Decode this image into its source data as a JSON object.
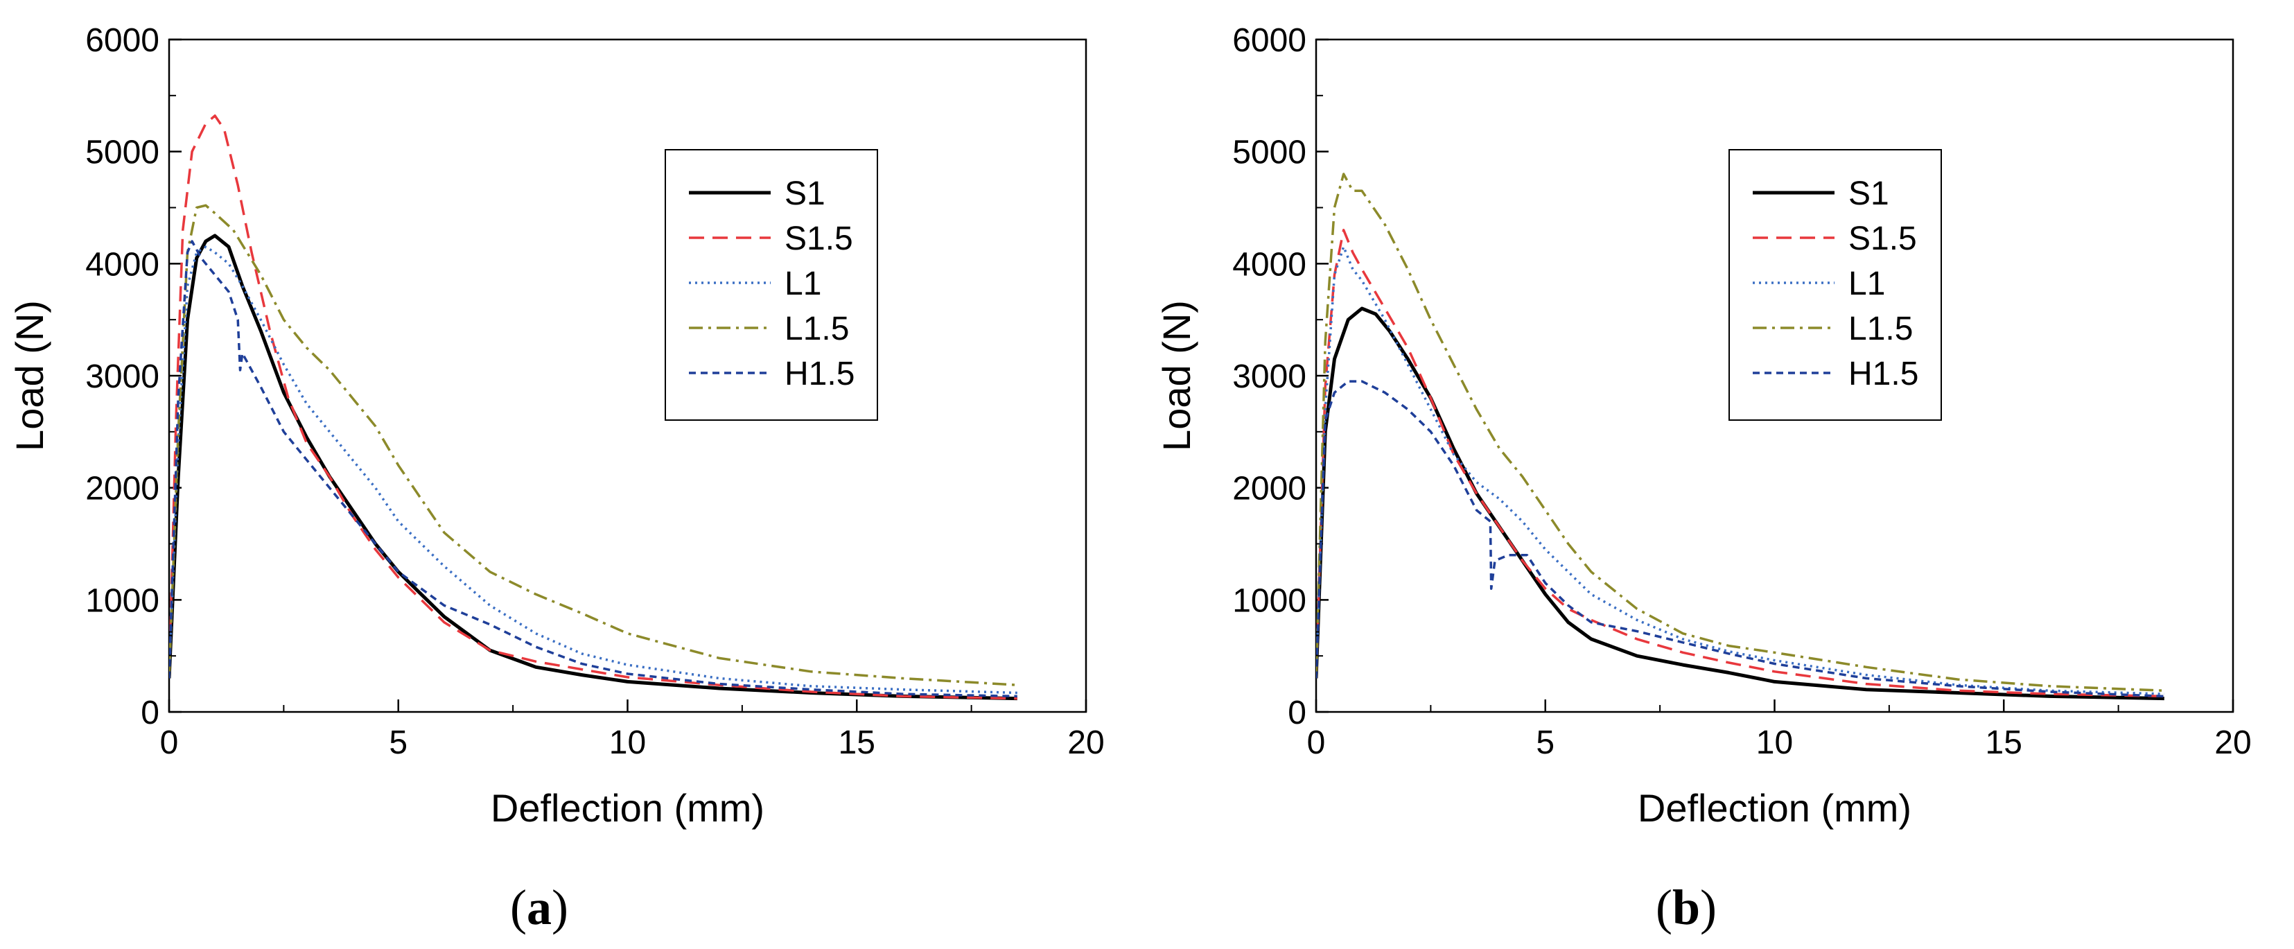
{
  "figure": {
    "panels": [
      {
        "id": "a",
        "label": "a"
      },
      {
        "id": "b",
        "label": "b"
      }
    ]
  },
  "chart_data": [
    {
      "type": "line",
      "panel": "a",
      "title": "",
      "xlabel": "Deflection (mm)",
      "ylabel": "Load (N)",
      "xlim": [
        0,
        20
      ],
      "ylim": [
        0,
        6000
      ],
      "xticks": [
        "0",
        "5",
        "10",
        "15",
        "20"
      ],
      "yticks": [
        "0",
        "1000",
        "2000",
        "3000",
        "4000",
        "5000",
        "6000"
      ],
      "legend_position": "top-right",
      "series": [
        {
          "name": "S1",
          "color": "#000000",
          "dash": "solid",
          "points": [
            [
              0,
              300
            ],
            [
              0.2,
              2100
            ],
            [
              0.4,
              3500
            ],
            [
              0.6,
              4050
            ],
            [
              0.8,
              4200
            ],
            [
              1.0,
              4250
            ],
            [
              1.3,
              4150
            ],
            [
              1.6,
              3800
            ],
            [
              2.0,
              3400
            ],
            [
              2.5,
              2850
            ],
            [
              3.0,
              2450
            ],
            [
              3.5,
              2100
            ],
            [
              4.0,
              1800
            ],
            [
              4.5,
              1500
            ],
            [
              5.0,
              1250
            ],
            [
              5.5,
              1050
            ],
            [
              6.0,
              850
            ],
            [
              7.0,
              550
            ],
            [
              8.0,
              400
            ],
            [
              9.0,
              330
            ],
            [
              10.0,
              270
            ],
            [
              12.0,
              210
            ],
            [
              14.0,
              170
            ],
            [
              16.0,
              140
            ],
            [
              18.5,
              120
            ]
          ]
        },
        {
          "name": "S1.5",
          "color": "#e8383d",
          "dash": "dashed",
          "points": [
            [
              0,
              300
            ],
            [
              0.15,
              2600
            ],
            [
              0.3,
              4300
            ],
            [
              0.5,
              5000
            ],
            [
              0.8,
              5250
            ],
            [
              1.0,
              5320
            ],
            [
              1.2,
              5200
            ],
            [
              1.5,
              4700
            ],
            [
              1.8,
              4100
            ],
            [
              2.2,
              3400
            ],
            [
              2.6,
              2800
            ],
            [
              3.0,
              2400
            ],
            [
              3.5,
              2100
            ],
            [
              4.0,
              1750
            ],
            [
              4.5,
              1450
            ],
            [
              5.0,
              1200
            ],
            [
              6.0,
              800
            ],
            [
              7.0,
              550
            ],
            [
              8.0,
              450
            ],
            [
              9.0,
              380
            ],
            [
              10.0,
              310
            ],
            [
              12.0,
              240
            ],
            [
              14.0,
              180
            ],
            [
              16.0,
              140
            ],
            [
              18.5,
              120
            ]
          ]
        },
        {
          "name": "L1",
          "color": "#3b6fc4",
          "dash": "dotted",
          "points": [
            [
              0,
              300
            ],
            [
              0.2,
              2400
            ],
            [
              0.4,
              3800
            ],
            [
              0.6,
              4100
            ],
            [
              0.8,
              4150
            ],
            [
              1.0,
              4100
            ],
            [
              1.3,
              4000
            ],
            [
              1.6,
              3800
            ],
            [
              2.0,
              3500
            ],
            [
              2.5,
              3100
            ],
            [
              3.0,
              2750
            ],
            [
              3.5,
              2500
            ],
            [
              4.0,
              2250
            ],
            [
              4.5,
              2000
            ],
            [
              5.0,
              1700
            ],
            [
              5.5,
              1500
            ],
            [
              6.0,
              1300
            ],
            [
              7.0,
              950
            ],
            [
              8.0,
              700
            ],
            [
              9.0,
              520
            ],
            [
              10.0,
              420
            ],
            [
              12.0,
              300
            ],
            [
              14.0,
              230
            ],
            [
              16.0,
              200
            ],
            [
              18.5,
              170
            ]
          ]
        },
        {
          "name": "L1.5",
          "color": "#8c8a2a",
          "dash": "dashdot",
          "points": [
            [
              0,
              300
            ],
            [
              0.2,
              2500
            ],
            [
              0.4,
              4100
            ],
            [
              0.6,
              4500
            ],
            [
              0.8,
              4520
            ],
            [
              1.0,
              4450
            ],
            [
              1.4,
              4300
            ],
            [
              2.0,
              3900
            ],
            [
              2.5,
              3500
            ],
            [
              3.0,
              3250
            ],
            [
              3.5,
              3050
            ],
            [
              4.0,
              2800
            ],
            [
              4.5,
              2550
            ],
            [
              5.0,
              2200
            ],
            [
              5.5,
              1900
            ],
            [
              6.0,
              1600
            ],
            [
              7.0,
              1250
            ],
            [
              8.0,
              1050
            ],
            [
              9.0,
              880
            ],
            [
              10.0,
              700
            ],
            [
              12.0,
              480
            ],
            [
              14.0,
              360
            ],
            [
              16.0,
              300
            ],
            [
              18.5,
              240
            ]
          ]
        },
        {
          "name": "H1.5",
          "color": "#1f3f99",
          "dash": "shortdash",
          "points": [
            [
              0,
              300
            ],
            [
              0.2,
              2800
            ],
            [
              0.4,
              4100
            ],
            [
              0.5,
              4200
            ],
            [
              0.7,
              4050
            ],
            [
              1.0,
              3900
            ],
            [
              1.3,
              3750
            ],
            [
              1.5,
              3500
            ],
            [
              1.55,
              3050
            ],
            [
              1.6,
              3200
            ],
            [
              2.0,
              2900
            ],
            [
              2.5,
              2500
            ],
            [
              3.0,
              2250
            ],
            [
              3.5,
              2000
            ],
            [
              4.0,
              1750
            ],
            [
              4.5,
              1500
            ],
            [
              5.0,
              1250
            ],
            [
              5.5,
              1100
            ],
            [
              6.0,
              950
            ],
            [
              7.0,
              780
            ],
            [
              8.0,
              580
            ],
            [
              9.0,
              430
            ],
            [
              10.0,
              340
            ],
            [
              12.0,
              250
            ],
            [
              14.0,
              200
            ],
            [
              16.0,
              160
            ],
            [
              18.5,
              140
            ]
          ]
        }
      ]
    },
    {
      "type": "line",
      "panel": "b",
      "title": "",
      "xlabel": "Deflection (mm)",
      "ylabel": "Load (N)",
      "xlim": [
        0,
        20
      ],
      "ylim": [
        0,
        6000
      ],
      "xticks": [
        "0",
        "5",
        "10",
        "15",
        "20"
      ],
      "yticks": [
        "0",
        "1000",
        "2000",
        "3000",
        "4000",
        "5000",
        "6000"
      ],
      "legend_position": "top-right",
      "series": [
        {
          "name": "S1",
          "color": "#000000",
          "dash": "solid",
          "points": [
            [
              0,
              300
            ],
            [
              0.2,
              2500
            ],
            [
              0.4,
              3150
            ],
            [
              0.7,
              3500
            ],
            [
              1.0,
              3600
            ],
            [
              1.3,
              3550
            ],
            [
              1.6,
              3400
            ],
            [
              2.0,
              3150
            ],
            [
              2.5,
              2800
            ],
            [
              3.0,
              2350
            ],
            [
              3.5,
              1950
            ],
            [
              4.0,
              1650
            ],
            [
              4.5,
              1350
            ],
            [
              5.0,
              1050
            ],
            [
              5.5,
              800
            ],
            [
              6.0,
              650
            ],
            [
              7.0,
              500
            ],
            [
              8.0,
              420
            ],
            [
              9.0,
              350
            ],
            [
              10.0,
              270
            ],
            [
              12.0,
              200
            ],
            [
              14.0,
              170
            ],
            [
              16.0,
              140
            ],
            [
              18.5,
              120
            ]
          ]
        },
        {
          "name": "S1.5",
          "color": "#e8383d",
          "dash": "dashed",
          "points": [
            [
              0,
              300
            ],
            [
              0.2,
              2900
            ],
            [
              0.4,
              3900
            ],
            [
              0.6,
              4300
            ],
            [
              0.8,
              4100
            ],
            [
              1.0,
              3950
            ],
            [
              1.5,
              3600
            ],
            [
              2.0,
              3250
            ],
            [
              2.5,
              2800
            ],
            [
              3.0,
              2300
            ],
            [
              3.5,
              1950
            ],
            [
              4.0,
              1650
            ],
            [
              4.5,
              1350
            ],
            [
              5.0,
              1100
            ],
            [
              5.5,
              920
            ],
            [
              6.0,
              820
            ],
            [
              7.0,
              650
            ],
            [
              8.0,
              530
            ],
            [
              9.0,
              440
            ],
            [
              10.0,
              360
            ],
            [
              12.0,
              250
            ],
            [
              14.0,
              190
            ],
            [
              16.0,
              160
            ],
            [
              18.5,
              140
            ]
          ]
        },
        {
          "name": "L1",
          "color": "#3b6fc4",
          "dash": "dotted",
          "points": [
            [
              0,
              300
            ],
            [
              0.2,
              2700
            ],
            [
              0.4,
              3900
            ],
            [
              0.6,
              4150
            ],
            [
              0.8,
              3950
            ],
            [
              1.0,
              3850
            ],
            [
              1.5,
              3500
            ],
            [
              2.0,
              3100
            ],
            [
              2.5,
              2700
            ],
            [
              3.0,
              2300
            ],
            [
              3.5,
              2050
            ],
            [
              4.0,
              1900
            ],
            [
              4.5,
              1700
            ],
            [
              5.0,
              1450
            ],
            [
              5.5,
              1250
            ],
            [
              6.0,
              1050
            ],
            [
              7.0,
              820
            ],
            [
              8.0,
              650
            ],
            [
              9.0,
              540
            ],
            [
              10.0,
              460
            ],
            [
              12.0,
              330
            ],
            [
              14.0,
              240
            ],
            [
              16.0,
              190
            ],
            [
              18.5,
              160
            ]
          ]
        },
        {
          "name": "L1.5",
          "color": "#8c8a2a",
          "dash": "dashdot",
          "points": [
            [
              0,
              300
            ],
            [
              0.2,
              3300
            ],
            [
              0.4,
              4500
            ],
            [
              0.6,
              4800
            ],
            [
              0.8,
              4650
            ],
            [
              1.0,
              4650
            ],
            [
              1.5,
              4350
            ],
            [
              2.0,
              3950
            ],
            [
              2.5,
              3500
            ],
            [
              3.0,
              3100
            ],
            [
              3.5,
              2700
            ],
            [
              4.0,
              2350
            ],
            [
              4.5,
              2100
            ],
            [
              5.0,
              1800
            ],
            [
              5.5,
              1500
            ],
            [
              6.0,
              1250
            ],
            [
              7.0,
              920
            ],
            [
              8.0,
              700
            ],
            [
              9.0,
              590
            ],
            [
              10.0,
              530
            ],
            [
              12.0,
              400
            ],
            [
              14.0,
              290
            ],
            [
              16.0,
              230
            ],
            [
              18.5,
              190
            ]
          ]
        },
        {
          "name": "H1.5",
          "color": "#1f3f99",
          "dash": "shortdash",
          "points": [
            [
              0,
              300
            ],
            [
              0.2,
              2600
            ],
            [
              0.4,
              2850
            ],
            [
              0.7,
              2950
            ],
            [
              1.0,
              2950
            ],
            [
              1.5,
              2850
            ],
            [
              2.0,
              2700
            ],
            [
              2.5,
              2500
            ],
            [
              3.0,
              2200
            ],
            [
              3.5,
              1800
            ],
            [
              3.8,
              1700
            ],
            [
              3.82,
              1100
            ],
            [
              3.9,
              1350
            ],
            [
              4.2,
              1400
            ],
            [
              4.6,
              1400
            ],
            [
              5.0,
              1150
            ],
            [
              5.5,
              950
            ],
            [
              6.0,
              800
            ],
            [
              7.0,
              720
            ],
            [
              8.0,
              620
            ],
            [
              9.0,
              520
            ],
            [
              10.0,
              430
            ],
            [
              12.0,
              300
            ],
            [
              14.0,
              230
            ],
            [
              16.0,
              180
            ],
            [
              18.5,
              140
            ]
          ]
        }
      ]
    }
  ]
}
